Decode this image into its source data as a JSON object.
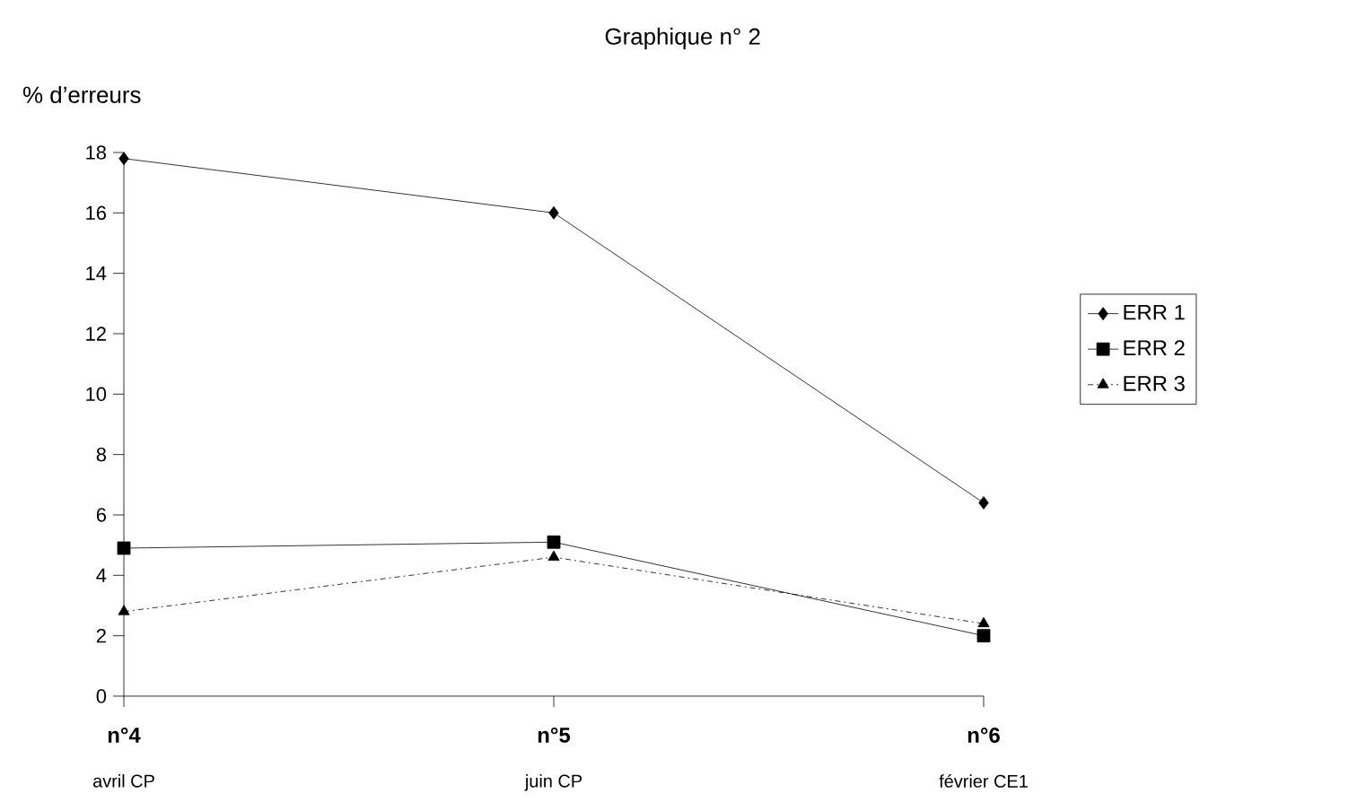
{
  "chart_data": {
    "type": "line",
    "title": "Graphique n° 2",
    "ylabel": "% d’erreurs",
    "categories": [
      "n°4",
      "n°5",
      "n°6"
    ],
    "annotations": [
      "avril CP",
      "juin CP",
      "février CE1"
    ],
    "series": [
      {
        "name": "ERR 1",
        "color": "#000000",
        "marker": "diamond",
        "line_style": "solid",
        "values": [
          17.8,
          16.0,
          6.4
        ]
      },
      {
        "name": "ERR 2",
        "color": "#000000",
        "marker": "square",
        "line_style": "solid",
        "values": [
          4.9,
          5.1,
          2.0
        ]
      },
      {
        "name": "ERR 3",
        "color": "#000000",
        "marker": "triangle",
        "line_style": "dashed",
        "values": [
          2.8,
          4.6,
          2.4
        ]
      }
    ],
    "ylim": [
      0,
      18
    ],
    "yticks": [
      0,
      2,
      4,
      6,
      8,
      10,
      12,
      14,
      16,
      18
    ],
    "grid": false,
    "legend": "right"
  }
}
